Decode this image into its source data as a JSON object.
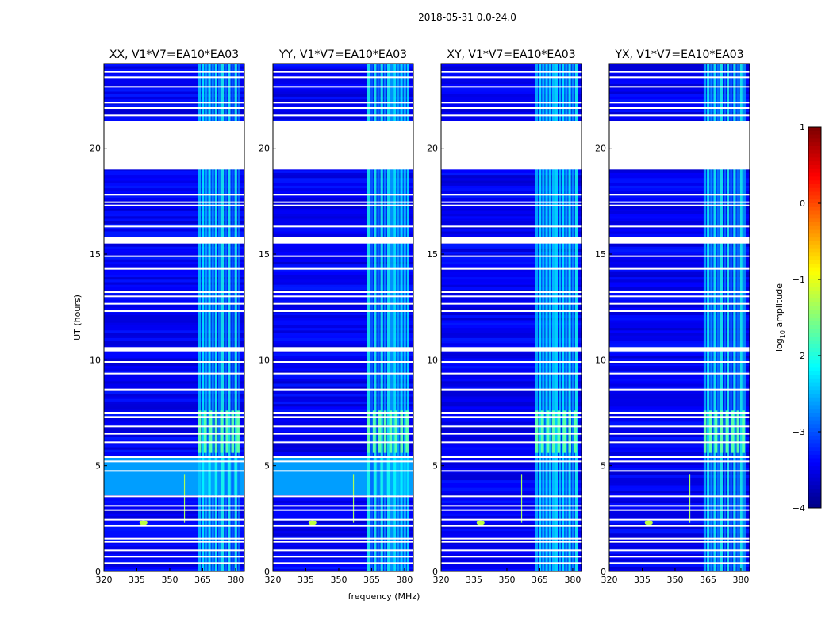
{
  "chart_data": {
    "type": "heatmap",
    "suptitle": "2018-05-31 0.0-24.0",
    "panels": [
      {
        "title": "XX, V1*V7=EA10*EA03",
        "pol": "XX"
      },
      {
        "title": "YY, V1*V7=EA10*EA03",
        "pol": "YY"
      },
      {
        "title": "XY, V1*V7=EA10*EA03",
        "pol": "XY"
      },
      {
        "title": "YX, V1*V7=EA10*EA03",
        "pol": "YX"
      }
    ],
    "xlabel": "frequency (MHz)",
    "ylabel": "UT (hours)",
    "xlim": [
      320,
      384
    ],
    "ylim": [
      0,
      24
    ],
    "xticks": [
      320,
      335,
      350,
      365,
      380
    ],
    "yticks": [
      0,
      5,
      10,
      15,
      20
    ],
    "colorbar": {
      "label": "log10 amplitude",
      "label_main": "log",
      "label_sub": "10",
      "label_rest": " amplitude",
      "ticks": [
        1,
        0,
        -1,
        -2,
        -3,
        -4
      ],
      "range": [
        -4,
        1
      ],
      "colormap": "jet"
    },
    "flagged_hour_ranges": [
      [
        19.0,
        21.3
      ],
      [
        15.5,
        15.8
      ],
      [
        10.4,
        10.6
      ]
    ],
    "flagged_hour_lines": [
      0.4,
      0.7,
      1.0,
      1.4,
      1.55,
      2.15,
      2.45,
      2.9,
      3.1,
      3.55,
      4.75,
      5.2,
      5.4,
      6.1,
      6.5,
      6.85,
      7.3,
      7.5,
      8.6,
      9.35,
      9.9,
      12.3,
      12.65,
      13.0,
      13.2,
      14.3,
      14.9,
      16.3,
      17.3,
      17.45,
      17.8,
      21.55,
      21.9,
      22.15,
      22.9,
      23.35,
      23.6
    ],
    "rfi_band_mhz": [
      363,
      382
    ],
    "rfi_spike_mhz": 356.5
  }
}
